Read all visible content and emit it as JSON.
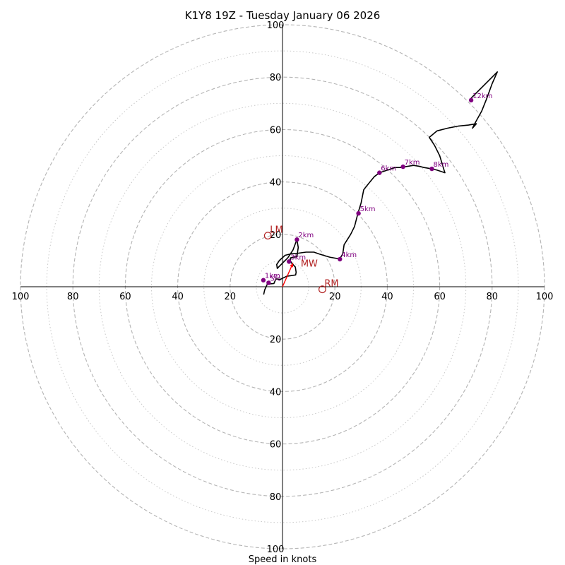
{
  "chart_data": {
    "type": "hodograph",
    "title": "K1Y8 19Z - Tuesday January 06 2026",
    "xlabel": "Speed in knots",
    "units": "knots",
    "range": [
      -100,
      100
    ],
    "rings_major": [
      20,
      40,
      60,
      80,
      100
    ],
    "rings_minor": [
      10,
      30,
      50,
      70,
      90
    ],
    "tick_labels": {
      "x_left": [
        "100",
        "80",
        "60",
        "40",
        "20"
      ],
      "x_right": [
        "20",
        "40",
        "60",
        "80",
        "100"
      ],
      "y_up": [
        "20",
        "40",
        "60",
        "80",
        "100"
      ],
      "y_down": [
        "20",
        "40",
        "60",
        "80",
        "100"
      ]
    },
    "trace": {
      "color": "#000000",
      "points": [
        [
          -7.2,
          -3.0
        ],
        [
          -6.8,
          -1.2
        ],
        [
          -5.8,
          1.0
        ],
        [
          -3.3,
          1.2
        ],
        [
          -2.5,
          3.0
        ],
        [
          -0.9,
          2.8
        ],
        [
          1.6,
          4.0
        ],
        [
          5.0,
          4.5
        ],
        [
          5.2,
          5.5
        ],
        [
          4.9,
          7.5
        ],
        [
          3.5,
          9.0
        ],
        [
          3.0,
          10.0
        ],
        [
          3.0,
          11.0
        ],
        [
          5.5,
          11.5
        ],
        [
          6.0,
          15.0
        ],
        [
          5.5,
          18.0
        ],
        [
          4.0,
          14.0
        ],
        [
          2.0,
          11.0
        ],
        [
          0.0,
          9.0
        ],
        [
          -2.0,
          7.0
        ],
        [
          -2.2,
          8.5
        ],
        [
          -1.2,
          10.0
        ],
        [
          1.0,
          12.0
        ],
        [
          3.0,
          12.5
        ],
        [
          6.0,
          12.8
        ],
        [
          9.0,
          13.2
        ],
        [
          12.0,
          13.2
        ],
        [
          14.0,
          12.5
        ],
        [
          18.0,
          11.3
        ],
        [
          21.8,
          10.6
        ],
        [
          23.0,
          12.5
        ],
        [
          23.5,
          16.0
        ],
        [
          26.0,
          20.0
        ],
        [
          27.5,
          23.0
        ],
        [
          28.8,
          28.0
        ],
        [
          30.0,
          32.0
        ],
        [
          31.0,
          37.0
        ],
        [
          32.0,
          38.3
        ],
        [
          35.0,
          42.0
        ],
        [
          37.0,
          43.5
        ],
        [
          40.0,
          44.5
        ],
        [
          43.0,
          45.5
        ],
        [
          45.0,
          45.5
        ],
        [
          46.0,
          45.7
        ],
        [
          50.0,
          46.3
        ],
        [
          52.0,
          46.0
        ],
        [
          54.0,
          45.5
        ],
        [
          57.0,
          45.0
        ],
        [
          59.0,
          44.5
        ],
        [
          62.0,
          43.5
        ],
        [
          61.5,
          45.0
        ],
        [
          60.0,
          50.0
        ],
        [
          58.0,
          54.0
        ],
        [
          56.0,
          57.0
        ],
        [
          59.0,
          59.5
        ],
        [
          63.0,
          60.5
        ],
        [
          67.0,
          61.3
        ],
        [
          71.0,
          61.7
        ],
        [
          74.0,
          62.2
        ],
        [
          72.5,
          60.5
        ],
        [
          73.5,
          62.5
        ],
        [
          76.0,
          67.0
        ],
        [
          78.0,
          72.0
        ],
        [
          80.0,
          77.5
        ],
        [
          82.0,
          82.0
        ],
        [
          77.0,
          77.0
        ],
        [
          72.0,
          72.0
        ]
      ]
    },
    "height_markers": {
      "color": "#800080",
      "points": [
        {
          "label": "Sfc",
          "u": -5.3,
          "v": 1.5
        },
        {
          "label": "1km",
          "u": -7.3,
          "v": 2.5
        },
        {
          "label": "2km",
          "u": 5.5,
          "v": 18.0
        },
        {
          "label": "3km",
          "u": 2.5,
          "v": 9.6
        },
        {
          "label": "4km",
          "u": 21.9,
          "v": 10.5
        },
        {
          "label": "5km",
          "u": 29.0,
          "v": 28.0
        },
        {
          "label": "6km",
          "u": 37.0,
          "v": 43.5
        },
        {
          "label": "7km",
          "u": 46.0,
          "v": 45.8
        },
        {
          "label": "8km",
          "u": 57.0,
          "v": 45.0
        },
        {
          "label": "12km",
          "u": 72.0,
          "v": 71.2
        }
      ]
    },
    "storm_motion": {
      "color": "#b22222",
      "points": [
        {
          "label": "LM",
          "u": -5.6,
          "v": 19.5
        },
        {
          "label": "RM",
          "u": 15.2,
          "v": -1.0
        },
        {
          "label": "MW",
          "u": 4.0,
          "v": 9.0
        }
      ],
      "vector": {
        "from": [
          0,
          0
        ],
        "to": [
          4.0,
          9.0
        ],
        "color": "#ff0000"
      }
    }
  }
}
